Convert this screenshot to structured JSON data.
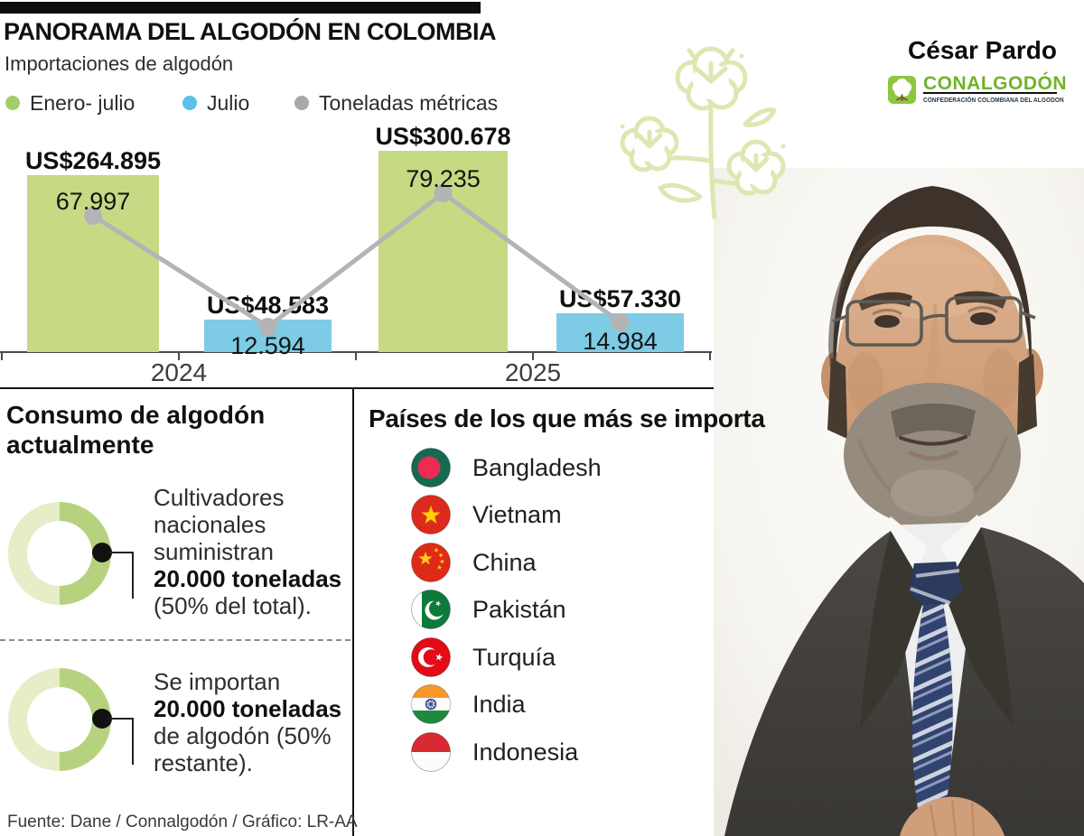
{
  "palette": {
    "green_bar": "#c6da84",
    "blue_bar": "#7ecbe5",
    "line_gray": "#b4b4b4",
    "legend_green": "#a5cd67",
    "legend_blue": "#59c2e8",
    "legend_gray": "#a8a8a8",
    "donut_dark": "#b6d27f",
    "donut_light": "#e6edc7",
    "logo_green": "#8dc63f",
    "logo_text_green": "#72b22a",
    "cotton_outline": "#e0e6b2"
  },
  "header": {
    "title": "PANORAMA DEL ALGODÓN EN COLOMBIA",
    "subtitle": "Importaciones de algodón"
  },
  "legend": [
    {
      "label": "Enero- julio",
      "color_key": "legend_green"
    },
    {
      "label": "Julio",
      "color_key": "legend_blue"
    },
    {
      "label": "Toneladas métricas",
      "color_key": "legend_gray"
    }
  ],
  "chart_data": {
    "type": "bar+line",
    "categories": [
      "2024",
      "2025"
    ],
    "bar_series": [
      {
        "name": "Enero- julio",
        "unit": "US$",
        "values": [
          264895,
          300678
        ],
        "labels": [
          "US$264.895",
          "US$300.678"
        ],
        "color_key": "green_bar"
      },
      {
        "name": "Julio",
        "unit": "US$",
        "values": [
          48583,
          57330
        ],
        "labels": [
          "US$48.583",
          "US$57.330"
        ],
        "color_key": "blue_bar"
      }
    ],
    "line_series": {
      "name": "Toneladas métricas",
      "values": [
        67997,
        12594,
        79235,
        14984
      ],
      "labels": [
        "67.997",
        "12.594",
        "79.235",
        "14.984"
      ],
      "color_key": "line_gray"
    },
    "xlabel": "",
    "ylabel": "",
    "grid": false,
    "legend_position": "top-left"
  },
  "person": {
    "name": "César Pardo"
  },
  "logo": {
    "brand": "CONALGODÓN",
    "tagline": "CONFEDERACIÓN COLOMBIANA DEL ALGODON"
  },
  "consumo": {
    "title_line1": "Consumo de algodón",
    "title_line2": "actualmente",
    "items": [
      {
        "percent_dark": 50,
        "lines": [
          {
            "t": "Cultivadores",
            "b": false
          },
          {
            "t": "nacionales",
            "b": false
          },
          {
            "t": "suministran",
            "b": false
          },
          {
            "t": "20.000 toneladas",
            "b": true
          },
          {
            "t": "(50% del total).",
            "b": false
          }
        ]
      },
      {
        "percent_dark": 50,
        "lines": [
          {
            "t": "Se importan",
            "b": false
          },
          {
            "t": "20.000 toneladas",
            "b": true
          },
          {
            "t": "de algodón (50%",
            "b": false
          },
          {
            "t": "restante).",
            "b": false
          }
        ]
      }
    ]
  },
  "paises": {
    "title": "Países  de los que más se importa",
    "countries": [
      "Bangladesh",
      "Vietnam",
      "China",
      "Pakistán",
      "Turquía",
      "India",
      "Indonesia"
    ]
  },
  "footer": {
    "source": "Fuente: Dane / Connalgodón / Gráfico: LR-AA"
  }
}
